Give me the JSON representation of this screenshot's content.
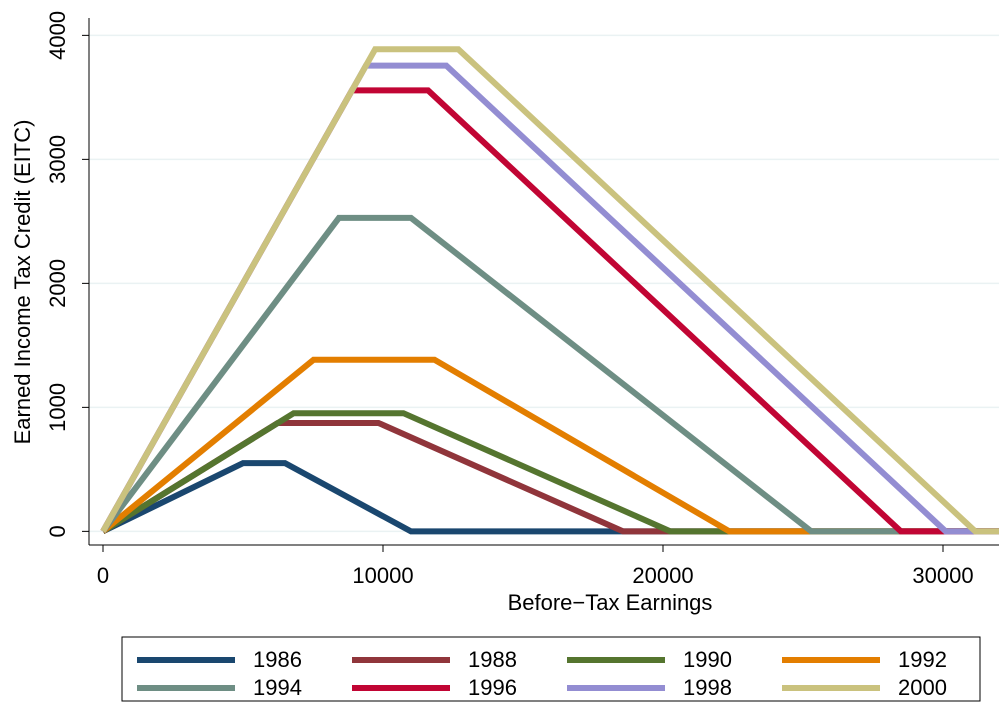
{
  "chart_data": {
    "type": "line",
    "x_label": "Before−Tax Earnings",
    "y_label": "Earned Income Tax Credit (EITC)",
    "xlim": [
      -500,
      32000
    ],
    "ylim": [
      -110,
      4140
    ],
    "xticks": [
      0,
      10000,
      20000,
      30000
    ],
    "yticks": [
      0,
      1000,
      2000,
      3000,
      4000
    ],
    "grid": true,
    "legend": "bottom",
    "series": [
      {
        "name": "1986",
        "color": "#1a476f",
        "x": [
          0,
          5000,
          6500,
          11000,
          32000
        ],
        "values": [
          0,
          550,
          550,
          0,
          0
        ]
      },
      {
        "name": "1988",
        "color": "#90353b",
        "x": [
          0,
          6240,
          9840,
          18576,
          32000
        ],
        "values": [
          0,
          874,
          874,
          0,
          0
        ]
      },
      {
        "name": "1990",
        "color": "#55752f",
        "x": [
          0,
          6810,
          10730,
          20264,
          32000
        ],
        "values": [
          0,
          953,
          953,
          0,
          0
        ]
      },
      {
        "name": "1992",
        "color": "#e37e00",
        "x": [
          0,
          7520,
          11840,
          22370,
          32000
        ],
        "values": [
          0,
          1384,
          1384,
          0,
          0
        ]
      },
      {
        "name": "1994",
        "color": "#6e8e84",
        "x": [
          0,
          8425,
          11000,
          25296,
          32000
        ],
        "values": [
          0,
          2528,
          2528,
          0,
          0
        ]
      },
      {
        "name": "1996",
        "color": "#c10534",
        "x": [
          0,
          8890,
          11610,
          28495,
          32000
        ],
        "values": [
          0,
          3556,
          3556,
          0,
          0
        ]
      },
      {
        "name": "1998",
        "color": "#938dd2",
        "x": [
          0,
          9390,
          12260,
          30095,
          32000
        ],
        "values": [
          0,
          3756,
          3756,
          0,
          0
        ]
      },
      {
        "name": "2000",
        "color": "#cac27e",
        "x": [
          0,
          9720,
          12690,
          31152,
          32000
        ],
        "values": [
          0,
          3888,
          3888,
          0,
          0
        ]
      }
    ]
  }
}
